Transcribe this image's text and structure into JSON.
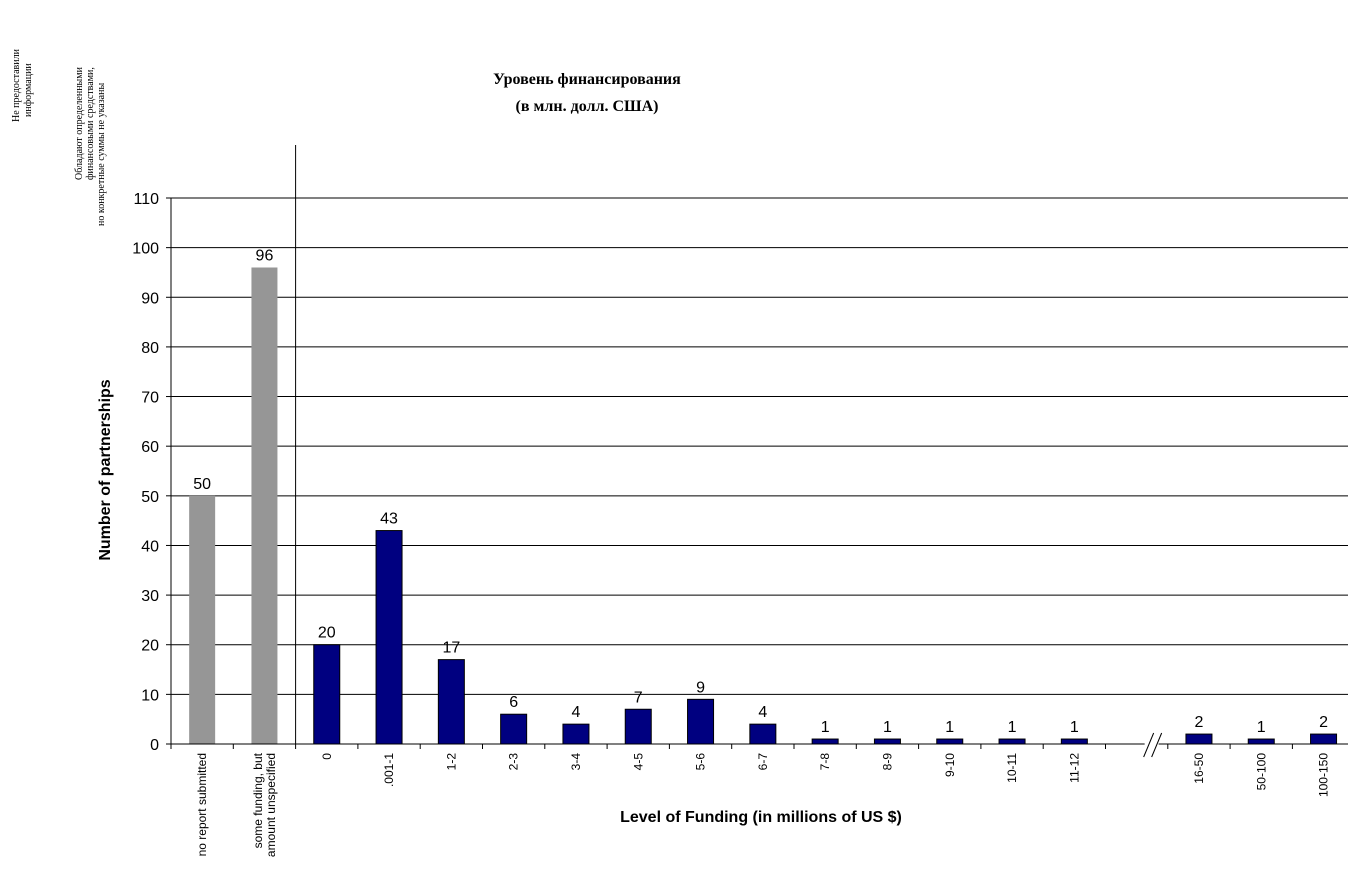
{
  "annotations": {
    "no_info_line1": "Не предоставили",
    "no_info_line2": "информации",
    "unspecified_line1": "Обладают определенными",
    "unspecified_line2": "финансовыми средствами,",
    "unspecified_line3": "но конкретные суммы не указаны"
  },
  "chart_data": {
    "type": "bar",
    "title": "Уровень финансирования",
    "subtitle": "(в млн. долл. США)",
    "xlabel": "Level of Funding (in millions of US $)",
    "ylabel": "Number of partnerships",
    "ylim": [
      0,
      110
    ],
    "yticks": [
      0,
      10,
      20,
      30,
      40,
      50,
      60,
      70,
      80,
      90,
      100,
      110
    ],
    "grid": true,
    "legend": "none",
    "categories": [
      "no report submitted",
      "some funding, but amount unspecified",
      "0",
      ".001-1",
      "1-2",
      "2-3",
      "3-4",
      "4-5",
      "5-6",
      "6-7",
      "7-8",
      "8-9",
      "9-10",
      "10-11",
      "11-12",
      "",
      "16-50",
      "50-100",
      "100-150"
    ],
    "category_label_lines": [
      [
        "no report submitted"
      ],
      [
        "some funding, but",
        "amount unspecified"
      ],
      [
        "0"
      ],
      [
        ".001-1"
      ],
      [
        "1-2"
      ],
      [
        "2-3"
      ],
      [
        "3-4"
      ],
      [
        "4-5"
      ],
      [
        "5-6"
      ],
      [
        "6-7"
      ],
      [
        "7-8"
      ],
      [
        "8-9"
      ],
      [
        "9-10"
      ],
      [
        "10-11"
      ],
      [
        "11-12"
      ],
      [],
      [
        "16-50"
      ],
      [
        "50-100"
      ],
      [
        "100-150"
      ]
    ],
    "values": [
      50,
      96,
      20,
      43,
      17,
      6,
      4,
      7,
      9,
      4,
      1,
      1,
      1,
      1,
      1,
      null,
      2,
      1,
      2
    ],
    "bar_colors": [
      "#969696",
      "#969696",
      "#000080",
      "#000080",
      "#000080",
      "#000080",
      "#000080",
      "#000080",
      "#000080",
      "#000080",
      "#000080",
      "#000080",
      "#000080",
      "#000080",
      "#000080",
      "#000080",
      "#000080",
      "#000080",
      "#000080"
    ],
    "axis_break_marker": "//"
  }
}
